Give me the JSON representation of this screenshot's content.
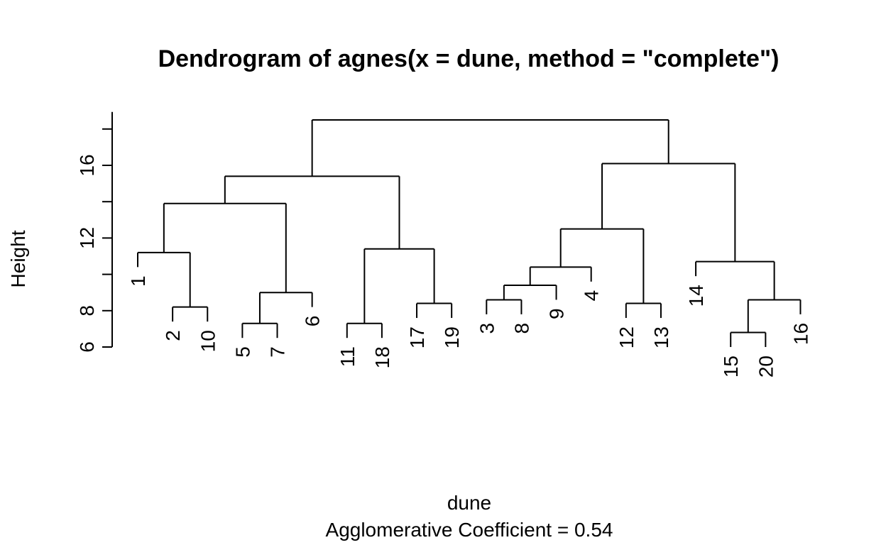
{
  "chart_data": {
    "type": "dendrogram",
    "title": "Dendrogram of  agnes(x = dune, method = \"complete\")",
    "xlabel": "dune",
    "sub": "Agglomerative Coefficient =  0.54",
    "ylabel": "Height",
    "ylim": [
      6,
      18.5
    ],
    "yticks": [
      6,
      8,
      10,
      12,
      14,
      16,
      18
    ],
    "ytick_labels": [
      "6",
      "8",
      "",
      "12",
      "",
      "16",
      ""
    ],
    "order": [
      "1",
      "2",
      "10",
      "5",
      "7",
      "6",
      "11",
      "18",
      "17",
      "19",
      "3",
      "8",
      "9",
      "4",
      "12",
      "13",
      "14",
      "15",
      "20",
      "16"
    ],
    "merges": [
      {
        "id": "a",
        "left": "11",
        "right": "18",
        "height": 7.3
      },
      {
        "id": "b",
        "left": "5",
        "right": "7",
        "height": 7.3
      },
      {
        "id": "c",
        "left": "15",
        "right": "20",
        "height": 6.8
      },
      {
        "id": "d",
        "left": "2",
        "right": "10",
        "height": 8.2
      },
      {
        "id": "e",
        "left": "17",
        "right": "19",
        "height": 8.4
      },
      {
        "id": "f",
        "left": "12",
        "right": "13",
        "height": 8.4
      },
      {
        "id": "g",
        "left": "3",
        "right": "8",
        "height": 8.6
      },
      {
        "id": "h",
        "left": "c",
        "right": "16",
        "height": 8.6
      },
      {
        "id": "i",
        "left": "g",
        "right": "9",
        "height": 9.4
      },
      {
        "id": "j",
        "left": "b",
        "right": "6",
        "height": 9.0
      },
      {
        "id": "k",
        "left": "i",
        "right": "4",
        "height": 10.4
      },
      {
        "id": "l",
        "left": "14",
        "right": "h",
        "height": 10.7
      },
      {
        "id": "m",
        "left": "1",
        "right": "d",
        "height": 11.2
      },
      {
        "id": "n",
        "left": "a",
        "right": "e",
        "height": 11.4
      },
      {
        "id": "o",
        "left": "k",
        "right": "f",
        "height": 12.5
      },
      {
        "id": "p",
        "left": "m",
        "right": "j",
        "height": 13.9
      },
      {
        "id": "q",
        "left": "p",
        "right": "n",
        "height": 15.4
      },
      {
        "id": "r",
        "left": "o",
        "right": "l",
        "height": 16.1
      },
      {
        "id": "s",
        "left": "q",
        "right": "r",
        "height": 18.5
      }
    ]
  }
}
